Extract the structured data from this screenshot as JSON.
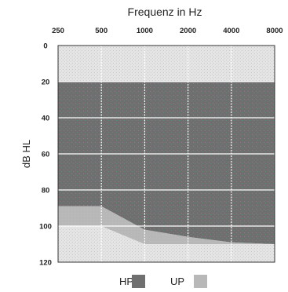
{
  "chart_data": {
    "type": "area",
    "title": "Frequenz in Hz",
    "xlabel": "",
    "ylabel": "dB HL",
    "x_ticks": [
      "250",
      "500",
      "1000",
      "2000",
      "4000",
      "8000"
    ],
    "y_ticks": [
      "0",
      "20",
      "40",
      "60",
      "80",
      "100",
      "120"
    ],
    "ylim": [
      0,
      120
    ],
    "y_inverted": true,
    "x_scale": "log2",
    "grid": true,
    "legend_position": "bottom",
    "series": [
      {
        "name": "HP",
        "color": "#6f6f6f",
        "points": [
          {
            "x": 250,
            "y_top": 20,
            "y_bottom": 89
          },
          {
            "x": 500,
            "y_top": 20,
            "y_bottom": 89
          },
          {
            "x": 1000,
            "y_top": 20,
            "y_bottom": 102
          },
          {
            "x": 2000,
            "y_top": 20,
            "y_bottom": 106
          },
          {
            "x": 4000,
            "y_top": 20,
            "y_bottom": 109
          },
          {
            "x": 8000,
            "y_top": 20,
            "y_bottom": 110
          }
        ]
      },
      {
        "name": "UP",
        "color": "#b8b8b8",
        "points": [
          {
            "x": 250,
            "y_top": 89,
            "y_bottom": 100
          },
          {
            "x": 500,
            "y_top": 89,
            "y_bottom": 100
          },
          {
            "x": 1000,
            "y_top": 102,
            "y_bottom": 110
          },
          {
            "x": 2000,
            "y_top": 106,
            "y_bottom": 110
          },
          {
            "x": 4000,
            "y_top": 109,
            "y_bottom": 110
          },
          {
            "x": 8000,
            "y_top": 110,
            "y_bottom": 110
          }
        ]
      }
    ],
    "background_color": "#e6e6e6"
  }
}
